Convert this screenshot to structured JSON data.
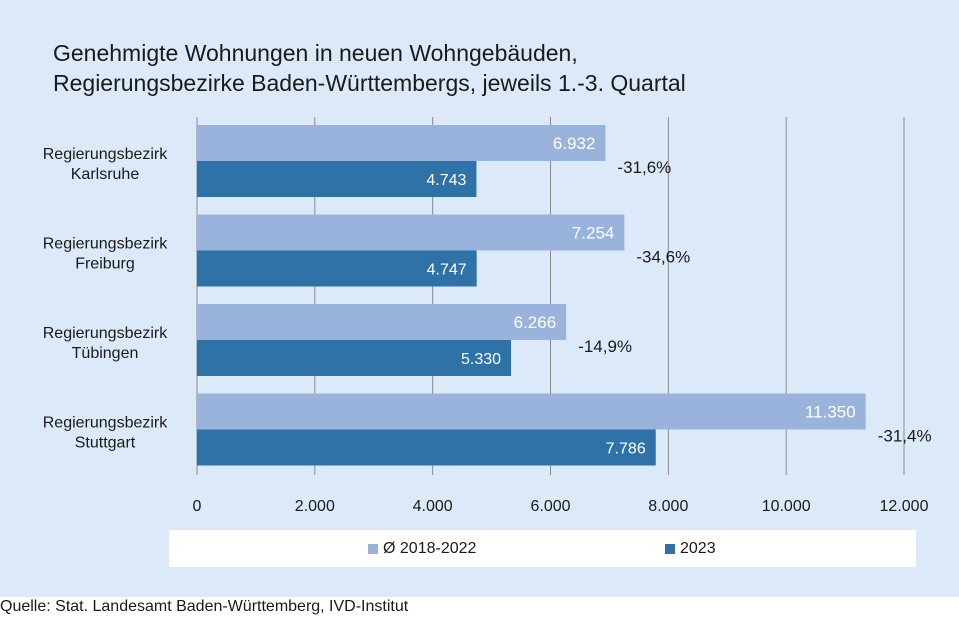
{
  "chart_data": {
    "type": "bar",
    "orientation": "horizontal",
    "title_lines": [
      "Genehmigte Wohnungen in neuen Wohngebäuden,",
      "Regierungsbezirke Baden-Württembergs, jeweils 1.-3. Quartal"
    ],
    "categories": [
      [
        "Regierungsbezirk",
        "Karlsruhe"
      ],
      [
        "Regierungsbezirk",
        "Freiburg"
      ],
      [
        "Regierungsbezirk",
        "Tübingen"
      ],
      [
        "Regierungsbezirk",
        "Stuttgart"
      ]
    ],
    "series": [
      {
        "name": "Ø 2018-2022",
        "color": "#9ab3dc",
        "label_color": "#ffffff",
        "values": [
          6932,
          7254,
          6266,
          11350
        ],
        "labels": [
          "6.932",
          "7.254",
          "6.266",
          "11.350"
        ]
      },
      {
        "name": "2023",
        "color": "#2e72a8",
        "label_color": "#ffffff",
        "values": [
          4743,
          4747,
          5330,
          7786
        ],
        "labels": [
          "4.743",
          "4.747",
          "5.330",
          "7.786"
        ]
      }
    ],
    "change_labels": [
      "-31,6%",
      "-34,6%",
      "-14,9%",
      "-31,4%"
    ],
    "xlim": [
      0,
      12000
    ],
    "xticks": [
      0,
      2000,
      4000,
      6000,
      8000,
      10000,
      12000
    ],
    "xtick_labels": [
      "0",
      "2.000",
      "4.000",
      "6.000",
      "8.000",
      "10.000",
      "12.000"
    ],
    "grid": true,
    "legend_position": "bottom",
    "colors": {
      "background": "#dce9f8",
      "gridline": "#8a8a8a"
    }
  },
  "source": "Quelle: Stat. Landesamt Baden-Württemberg, IVD-Institut"
}
